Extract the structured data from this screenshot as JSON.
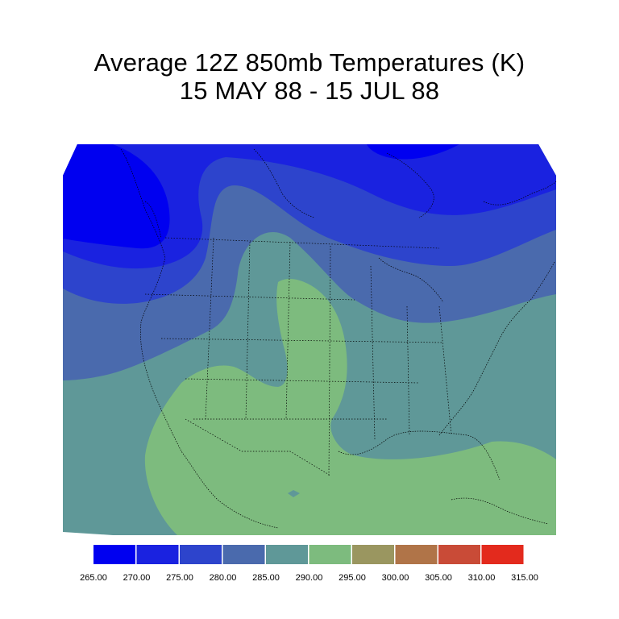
{
  "title": {
    "line1": "Average 12Z 850mb Temperatures (K)",
    "line2": "15 MAY 88 - 15 JUL 88"
  },
  "legend": {
    "labels": [
      "265.00",
      "270.00",
      "275.00",
      "280.00",
      "285.00",
      "290.00",
      "295.00",
      "300.00",
      "305.00",
      "310.00",
      "315.00"
    ],
    "colors": [
      "#0000f0",
      "#1a22e0",
      "#2d44cc",
      "#4a6aad",
      "#5f9898",
      "#7dbb7e",
      "#9a9660",
      "#b07448",
      "#c94b37",
      "#e32a1d"
    ]
  },
  "map": {
    "field_colors": {
      "k270": "#1a22e0",
      "k275": "#2d44cc",
      "k280": "#4a6aad",
      "k285": "#5f9898",
      "k290": "#7dbb7e"
    }
  }
}
